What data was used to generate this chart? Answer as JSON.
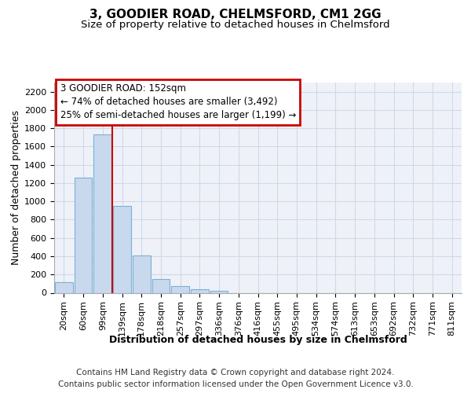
{
  "title": "3, GOODIER ROAD, CHELMSFORD, CM1 2GG",
  "subtitle": "Size of property relative to detached houses in Chelmsford",
  "xlabel": "Distribution of detached houses by size in Chelmsford",
  "ylabel": "Number of detached properties",
  "categories": [
    "20sqm",
    "60sqm",
    "99sqm",
    "139sqm",
    "178sqm",
    "218sqm",
    "257sqm",
    "297sqm",
    "336sqm",
    "376sqm",
    "416sqm",
    "455sqm",
    "495sqm",
    "534sqm",
    "574sqm",
    "613sqm",
    "653sqm",
    "692sqm",
    "732sqm",
    "771sqm",
    "811sqm"
  ],
  "values": [
    115,
    1260,
    1730,
    950,
    410,
    150,
    75,
    40,
    25,
    0,
    0,
    0,
    0,
    0,
    0,
    0,
    0,
    0,
    0,
    0,
    0
  ],
  "bar_color": "#c8d9ee",
  "bar_edge_color": "#7bafd4",
  "vline_color": "#cc0000",
  "vline_x": 2.5,
  "annotation_text": "3 GOODIER ROAD: 152sqm\n← 74% of detached houses are smaller (3,492)\n25% of semi-detached houses are larger (1,199) →",
  "annotation_box_facecolor": "#ffffff",
  "annotation_box_edgecolor": "#cc0000",
  "footer_line1": "Contains HM Land Registry data © Crown copyright and database right 2024.",
  "footer_line2": "Contains public sector information licensed under the Open Government Licence v3.0.",
  "ylim": [
    0,
    2300
  ],
  "yticks": [
    0,
    200,
    400,
    600,
    800,
    1000,
    1200,
    1400,
    1600,
    1800,
    2000,
    2200
  ],
  "title_fontsize": 11,
  "subtitle_fontsize": 9.5,
  "ylabel_fontsize": 9,
  "xlabel_fontsize": 9,
  "tick_fontsize": 8,
  "footer_fontsize": 7.5,
  "annotation_fontsize": 8.5,
  "grid_color": "#d0d8e8",
  "bg_color": "#eef2f8"
}
